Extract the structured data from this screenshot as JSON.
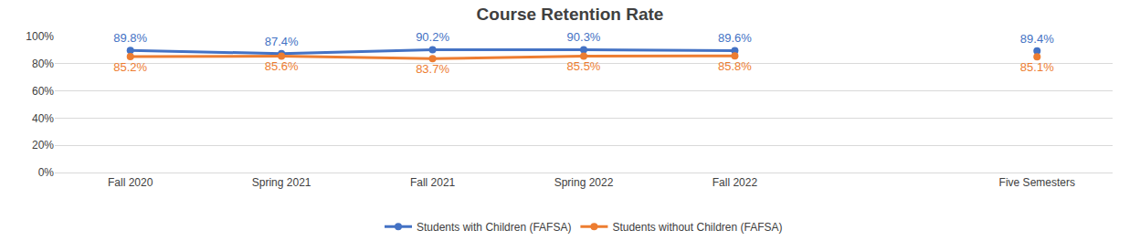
{
  "chart_data": {
    "type": "line",
    "title": "Course Retention Rate",
    "categories": [
      "Fall 2020",
      "Spring 2021",
      "Fall 2021",
      "Spring 2022",
      "Fall 2022",
      null,
      "Five Semesters"
    ],
    "series": [
      {
        "name": "Students with Children (FAFSA)",
        "color": "#4472c4",
        "marker": "circle",
        "values": [
          89.8,
          87.4,
          90.2,
          90.3,
          89.6,
          null,
          89.4
        ],
        "value_labels": [
          "89.8%",
          "87.4%",
          "90.2%",
          "90.3%",
          "89.6%",
          null,
          "89.4%"
        ]
      },
      {
        "name": "Students without Children (FAFSA)",
        "color": "#ed7d31",
        "marker": "circle",
        "values": [
          85.2,
          85.6,
          83.7,
          85.5,
          85.8,
          null,
          85.1
        ],
        "value_labels": [
          "85.2%",
          "85.6%",
          "83.7%",
          "85.5%",
          "85.8%",
          null,
          "85.1%"
        ]
      }
    ],
    "ylim": [
      0,
      100
    ],
    "yticks": [
      {
        "value": 0,
        "label": "0%"
      },
      {
        "value": 20,
        "label": "20%"
      },
      {
        "value": 40,
        "label": "40%"
      },
      {
        "value": 60,
        "label": "60%"
      },
      {
        "value": 80,
        "label": "80%"
      },
      {
        "value": 100,
        "label": "100%"
      }
    ],
    "grid": true,
    "legend": "bottom",
    "data_labels": true
  }
}
